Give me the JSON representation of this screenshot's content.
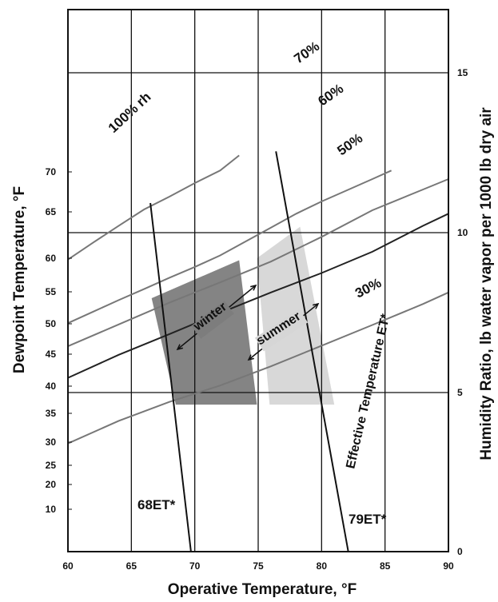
{
  "chart_data": {
    "type": "line",
    "title": "",
    "xlabel": "Operative Temperature, °F",
    "ylabel_left": "Dewpoint Temperature, °F",
    "ylabel_right": "Humidity Ratio, lb water vapor per 1000 lb dry air",
    "xlim": [
      60,
      90
    ],
    "x_ticks": [
      60,
      65,
      70,
      75,
      80,
      85,
      90
    ],
    "left_ticks": [
      10,
      20,
      25,
      30,
      35,
      40,
      45,
      50,
      55,
      60,
      65,
      70
    ],
    "right_ticks": [
      0,
      5,
      10,
      15
    ],
    "humidity_ratio_gridlines": [
      5,
      10,
      15
    ],
    "grid": true,
    "rh_curves": [
      {
        "label": "100% rh",
        "points": [
          [
            60,
            59.8
          ],
          [
            62,
            61.7
          ],
          [
            64,
            63.5
          ],
          [
            66,
            65.3
          ],
          [
            68,
            66.9
          ],
          [
            70,
            68.6
          ],
          [
            72,
            70.1
          ],
          [
            73.5,
            71.2
          ]
        ]
      },
      {
        "label": "70%",
        "points": [
          [
            60,
            50.1
          ],
          [
            62,
            51.9
          ],
          [
            64,
            53.7
          ],
          [
            66,
            55.4
          ],
          [
            68,
            57.1
          ],
          [
            70,
            58.7
          ],
          [
            72,
            60.3
          ],
          [
            74,
            61.8
          ],
          [
            76,
            63.3
          ],
          [
            78,
            64.8
          ],
          [
            80,
            66.3
          ],
          [
            82,
            67.7
          ],
          [
            84,
            69.1
          ],
          [
            85.5,
            70.1
          ]
        ]
      },
      {
        "label": "60%",
        "points": [
          [
            60,
            46.3
          ],
          [
            64,
            49.9
          ],
          [
            68,
            53.3
          ],
          [
            72,
            56.4
          ],
          [
            76,
            59.5
          ],
          [
            80,
            62.3
          ],
          [
            84,
            65.2
          ],
          [
            88,
            67.8
          ],
          [
            90,
            69.1
          ]
        ]
      },
      {
        "label": "50%",
        "points": [
          [
            60,
            41.3
          ],
          [
            64,
            44.9
          ],
          [
            68,
            48.3
          ],
          [
            72,
            51.7
          ],
          [
            76,
            54.9
          ],
          [
            80,
            57.8
          ],
          [
            84,
            60.7
          ],
          [
            88,
            63.5
          ],
          [
            90,
            64.8
          ]
        ]
      },
      {
        "label": "30%",
        "points": [
          [
            60,
            29.7
          ],
          [
            64,
            33.7
          ],
          [
            68,
            37.1
          ],
          [
            72,
            40.1
          ],
          [
            76,
            43.1
          ],
          [
            80,
            46.4
          ],
          [
            84,
            49.8
          ],
          [
            88,
            53.1
          ],
          [
            90,
            54.9
          ]
        ]
      }
    ],
    "et_lines": [
      {
        "label": "68ET*",
        "points": [
          [
            66.5,
            66.1
          ],
          [
            69.7,
            0
          ]
        ]
      },
      {
        "label": "79ET*",
        "points": [
          [
            76.4,
            71.5
          ],
          [
            82.1,
            0
          ]
        ]
      }
    ],
    "comfort_zones": [
      {
        "label": "winter",
        "points": [
          [
            66.6,
            54
          ],
          [
            73.5,
            59.7
          ],
          [
            74.9,
            36.6
          ],
          [
            68.5,
            36.6
          ]
        ]
      },
      {
        "label": "summer",
        "points": [
          [
            74.9,
            60
          ],
          [
            78.3,
            63.4
          ],
          [
            81,
            36.6
          ],
          [
            75.9,
            36.6
          ]
        ]
      }
    ],
    "annotations": {
      "et_axis": "Effective Temperature ET*"
    }
  }
}
